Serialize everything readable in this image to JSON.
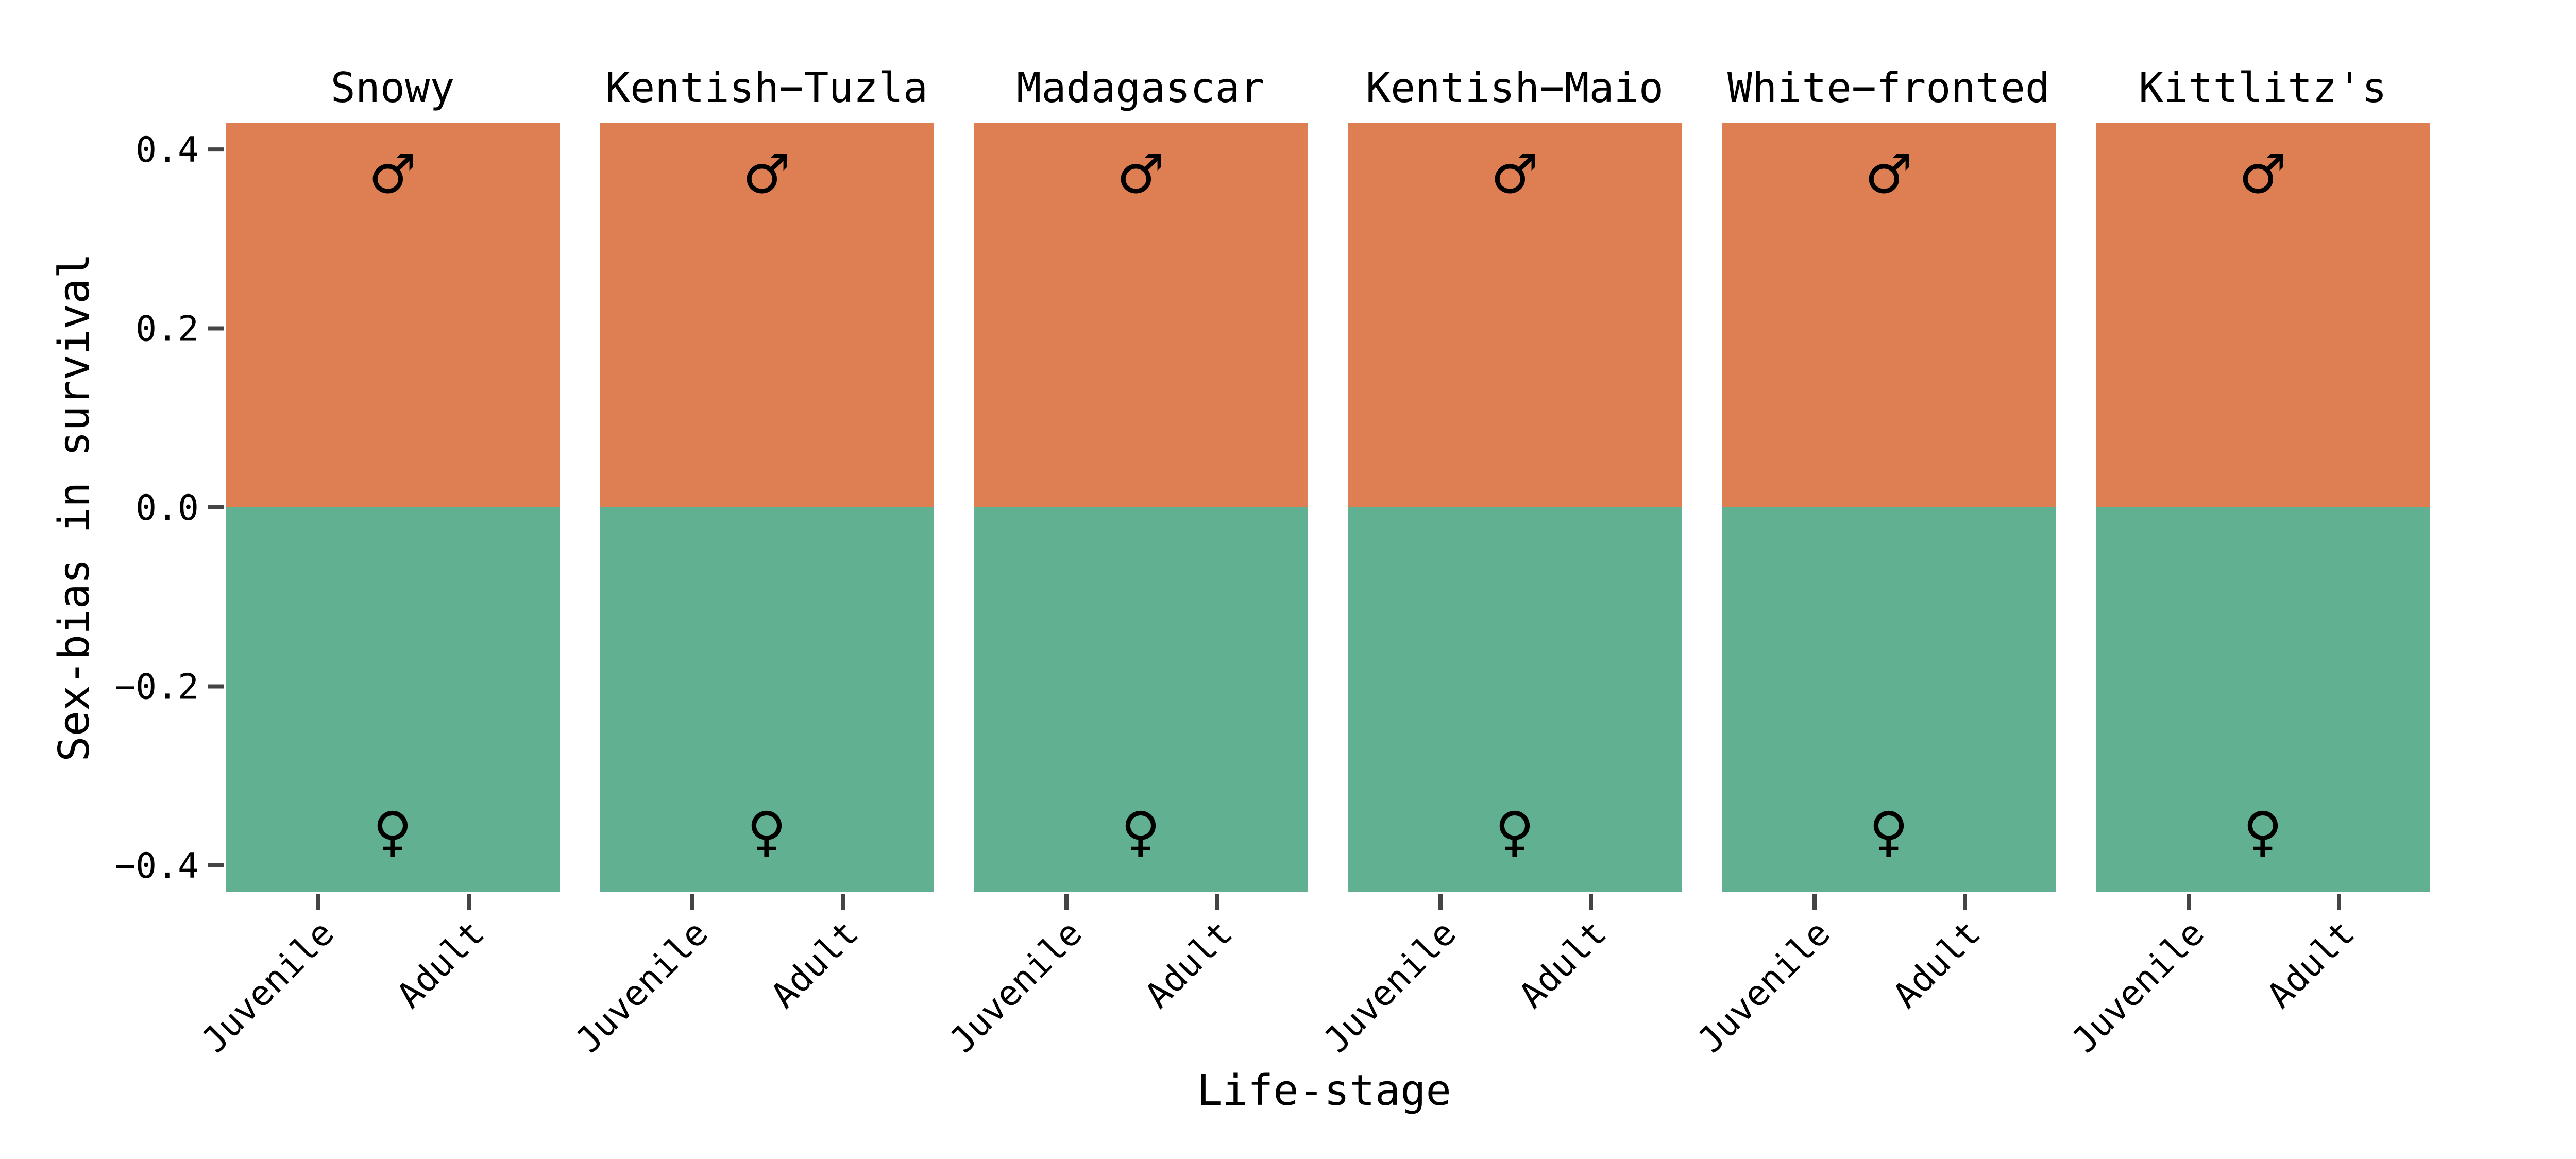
{
  "chart_data": {
    "type": "bar",
    "layout": "small-multiples",
    "ylabel": "Sex-bias in survival",
    "xlabel": "Life-stage",
    "ylim": [
      -0.43,
      0.43
    ],
    "yticks": [
      {
        "value": 0.4,
        "label": "0.4"
      },
      {
        "value": 0.2,
        "label": "0.2"
      },
      {
        "value": 0.0,
        "label": "0.0"
      },
      {
        "value": -0.2,
        "label": "−0.2"
      },
      {
        "value": -0.4,
        "label": "−0.4"
      }
    ],
    "categories": [
      "Juvenile",
      "Adult"
    ],
    "background_regions": [
      {
        "from": 0.0,
        "to": 0.43,
        "color": "#dd7f52",
        "symbol": "♂"
      },
      {
        "from": -0.43,
        "to": 0.0,
        "color": "#61b092",
        "symbol": "♀"
      }
    ],
    "panels": [
      {
        "title": "Snowy"
      },
      {
        "title": "Kentish−Tuzla"
      },
      {
        "title": "Madagascar"
      },
      {
        "title": "Kentish−Maio"
      },
      {
        "title": "White−fronted"
      },
      {
        "title": "Kittlitz's"
      }
    ]
  }
}
